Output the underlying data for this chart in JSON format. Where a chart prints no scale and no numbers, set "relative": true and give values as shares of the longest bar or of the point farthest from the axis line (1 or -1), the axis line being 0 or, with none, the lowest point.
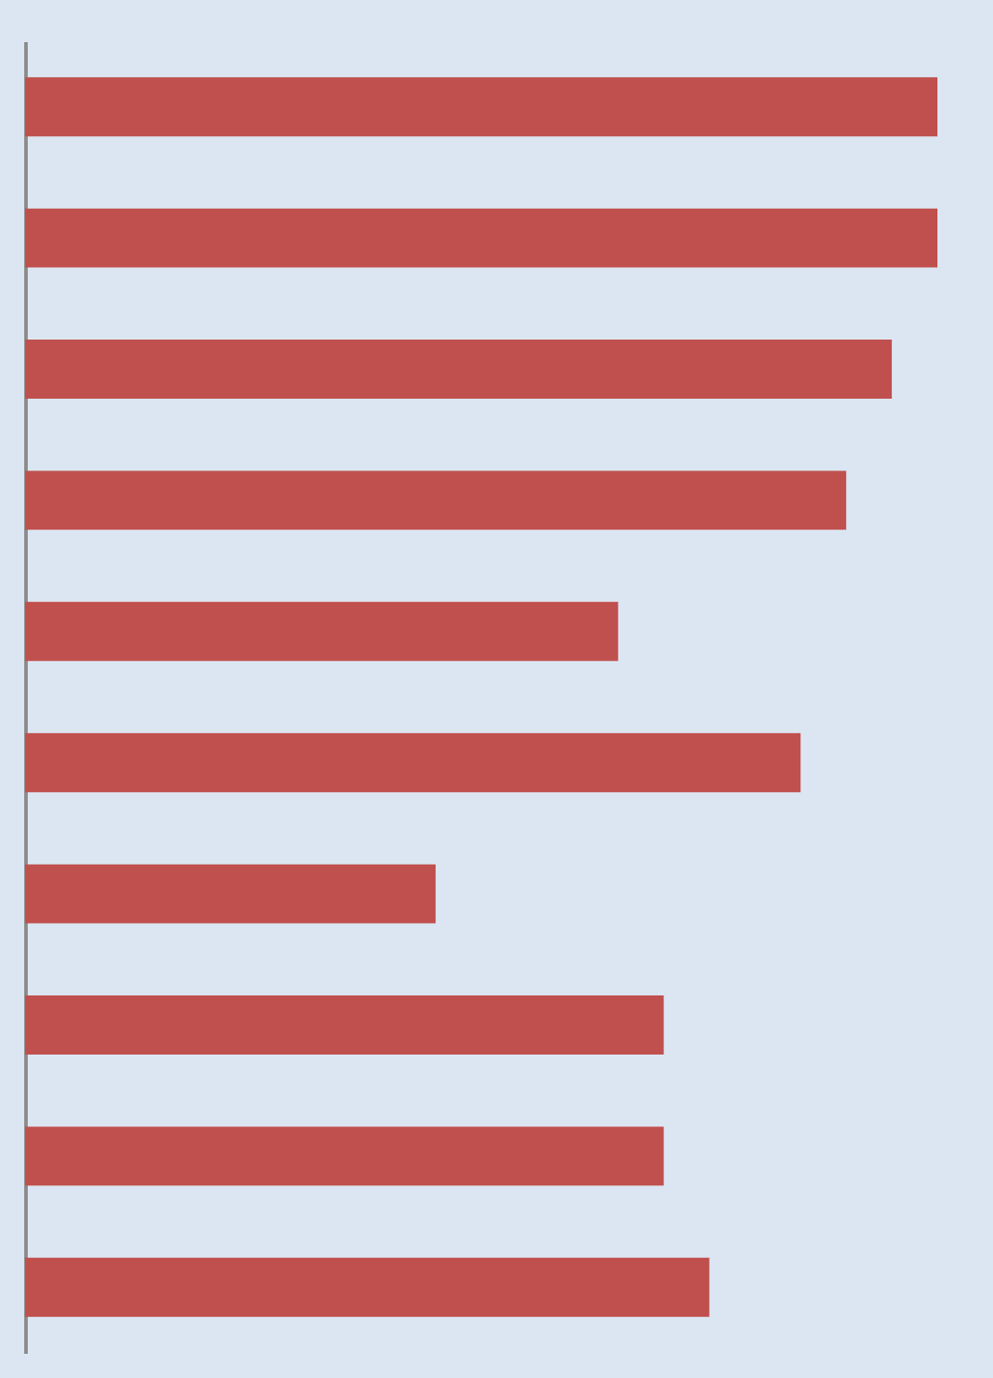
{
  "chart_data": {
    "type": "bar",
    "orientation": "horizontal",
    "relative": true,
    "categories": [
      null,
      null,
      null,
      null,
      null,
      null,
      null,
      null,
      null,
      null
    ],
    "values": [
      1,
      1,
      0.95,
      0.9,
      0.65,
      0.85,
      0.45,
      0.7,
      0.7,
      0.75
    ],
    "color": "#c0504d"
  }
}
